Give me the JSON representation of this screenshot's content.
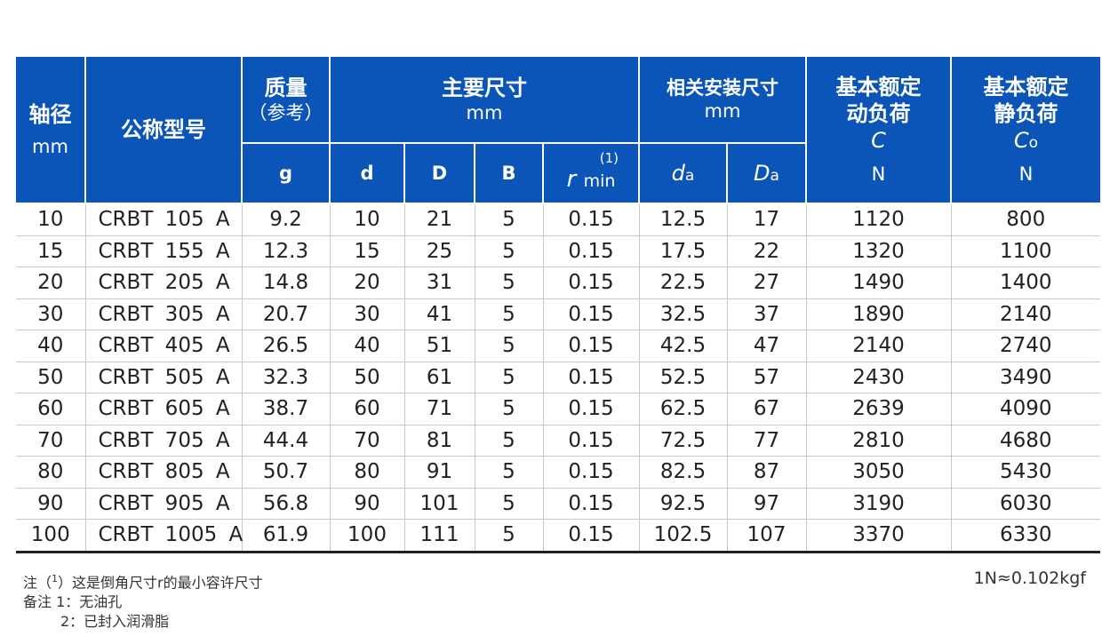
{
  "header": {
    "shaft": {
      "label": "轴径",
      "unit": "mm"
    },
    "model": "公称型号",
    "mass": {
      "label": "质量",
      "note": "（参考）",
      "unit": "g"
    },
    "main_dims": {
      "label": "主要尺寸",
      "unit": "mm",
      "d": "d",
      "D": "D",
      "B": "B",
      "r_sup": "(1)",
      "r": "r",
      "r_sub": "min"
    },
    "mount_dims": {
      "label": "相关安装尺寸",
      "unit": "mm",
      "da": "d",
      "da_sub": "a",
      "Da": "D",
      "Da_sub": "a"
    },
    "dyn": {
      "line1": "基本额定",
      "line2": "动负荷",
      "symbol": "C",
      "unit": "N"
    },
    "stat": {
      "line1": "基本额定",
      "line2": "静负荷",
      "symbol": "C",
      "symbol_sub": "o",
      "unit": "N"
    }
  },
  "rows": [
    [
      "10",
      "CRBT 105 A",
      "9.2",
      "10",
      "21",
      "5",
      "0.15",
      "12.5",
      "17",
      "1120",
      "800"
    ],
    [
      "15",
      "CRBT 155 A",
      "12.3",
      "15",
      "25",
      "5",
      "0.15",
      "17.5",
      "22",
      "1320",
      "1100"
    ],
    [
      "20",
      "CRBT 205 A",
      "14.8",
      "20",
      "31",
      "5",
      "0.15",
      "22.5",
      "27",
      "1490",
      "1400"
    ],
    [
      "30",
      "CRBT 305 A",
      "20.7",
      "30",
      "41",
      "5",
      "0.15",
      "32.5",
      "37",
      "1890",
      "2140"
    ],
    [
      "40",
      "CRBT 405 A",
      "26.5",
      "40",
      "51",
      "5",
      "0.15",
      "42.5",
      "47",
      "2140",
      "2740"
    ],
    [
      "50",
      "CRBT 505 A",
      "32.3",
      "50",
      "61",
      "5",
      "0.15",
      "52.5",
      "57",
      "2430",
      "3490"
    ],
    [
      "60",
      "CRBT 605 A",
      "38.7",
      "60",
      "71",
      "5",
      "0.15",
      "62.5",
      "67",
      "2639",
      "4090"
    ],
    [
      "70",
      "CRBT 705 A",
      "44.4",
      "70",
      "81",
      "5",
      "0.15",
      "72.5",
      "77",
      "2810",
      "4680"
    ],
    [
      "80",
      "CRBT 805 A",
      "50.7",
      "80",
      "91",
      "5",
      "0.15",
      "82.5",
      "87",
      "3050",
      "5430"
    ],
    [
      "90",
      "CRBT 905 A",
      "56.8",
      "90",
      "101",
      "5",
      "0.15",
      "92.5",
      "97",
      "3190",
      "6030"
    ],
    [
      "100",
      "CRBT 1005 A",
      "61.9",
      "100",
      "111",
      "5",
      "0.15",
      "102.5",
      "107",
      "3370",
      "6330"
    ]
  ],
  "notes": {
    "note1_prefix": "注（",
    "note1_sup": "1",
    "note1_text": "）这是倒角尺寸r的最小容许尺寸",
    "remark1": "备注 1：无油孔",
    "remark2": "2：已封入润滑脂"
  },
  "conversion": "1N≈0.102kgf"
}
